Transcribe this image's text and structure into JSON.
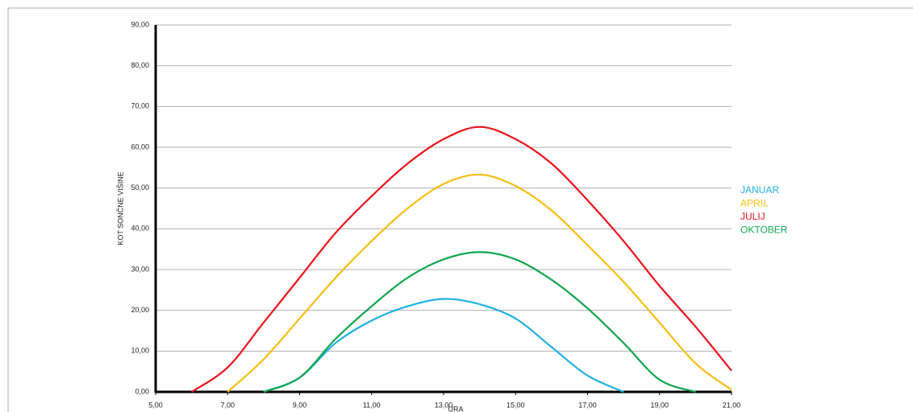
{
  "chart_data": {
    "type": "line",
    "y_label": "KOT SONČNE VIŠINE",
    "x_label": "URA",
    "x": [
      5,
      6,
      7,
      8,
      9,
      10,
      11,
      12,
      13,
      14,
      15,
      16,
      17,
      18,
      19,
      20,
      21
    ],
    "series": [
      {
        "name": "JANUAR",
        "color": "#1fb0e6",
        "values": [
          null,
          null,
          null,
          0,
          3.5,
          12,
          17.5,
          21,
          22.8,
          21.5,
          18,
          11,
          4,
          0,
          null,
          null,
          null
        ]
      },
      {
        "name": "APRIL",
        "color": "#f5be12",
        "values": [
          null,
          null,
          0,
          8,
          18,
          28,
          37,
          45,
          51,
          53.3,
          50.5,
          44.5,
          36,
          27,
          17,
          7,
          0.5
        ]
      },
      {
        "name": "JULIJ",
        "color": "#e8141b",
        "values": [
          null,
          0,
          6,
          17,
          28,
          39,
          48,
          56,
          62,
          65,
          62,
          56,
          47,
          37,
          26,
          16,
          5.2
        ]
      },
      {
        "name": "OKTOBER",
        "color": "#12a650",
        "values": [
          null,
          null,
          null,
          0,
          3.5,
          13,
          21,
          28,
          32.5,
          34.3,
          32.5,
          27.5,
          20.5,
          12,
          3,
          0,
          null
        ]
      }
    ],
    "xlim": [
      5,
      21
    ],
    "xticks": [
      {
        "value": 5,
        "label": "5,00"
      },
      {
        "value": 7,
        "label": "7,00"
      },
      {
        "value": 9,
        "label": "9,00"
      },
      {
        "value": 11,
        "label": "11,00"
      },
      {
        "value": 13,
        "label": "13,00"
      },
      {
        "value": 15,
        "label": "15,00"
      },
      {
        "value": 17,
        "label": "17,00"
      },
      {
        "value": 19,
        "label": "19,00"
      },
      {
        "value": 21,
        "label": "21,00"
      }
    ],
    "ylim": [
      0,
      90
    ],
    "yticks": [
      {
        "value": 0,
        "label": "0,00"
      },
      {
        "value": 10,
        "label": "10,00"
      },
      {
        "value": 20,
        "label": "20,00"
      },
      {
        "value": 30,
        "label": "30,00"
      },
      {
        "value": 40,
        "label": "40,00"
      },
      {
        "value": 50,
        "label": "50,00"
      },
      {
        "value": 60,
        "label": "60,00"
      },
      {
        "value": 70,
        "label": "70,00"
      },
      {
        "value": 80,
        "label": "80,00"
      },
      {
        "value": 90,
        "label": "90,00"
      }
    ],
    "grid": true
  }
}
